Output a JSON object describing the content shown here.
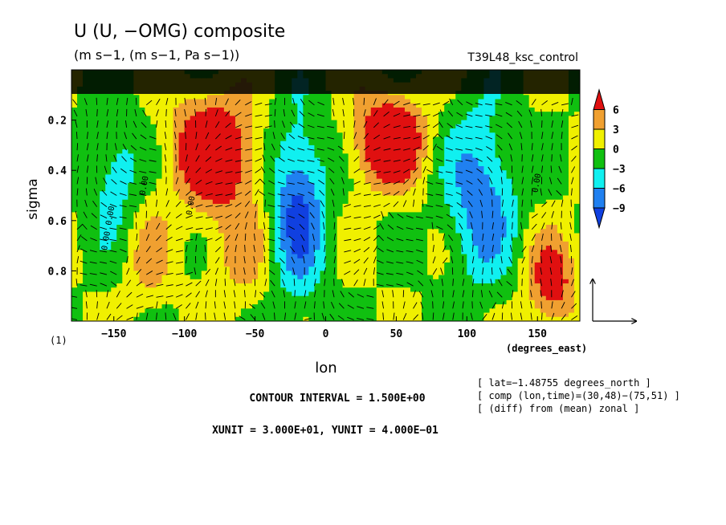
{
  "chart_data": {
    "type": "heatmap",
    "title": "U (U, −OMG) composite",
    "subtitle": "(m s−1, (m s−1, Pa s−1))",
    "run_label": "T39L48_ksc_control",
    "xlabel": "lon",
    "ylabel": "sigma",
    "x_unit_label": "(degrees_east)",
    "panel_label": "(1)",
    "xlim": [
      -180,
      180
    ],
    "ylim": [
      1.0,
      0.0
    ],
    "x_ticks": [
      {
        "value": -150,
        "label": "−150"
      },
      {
        "value": -100,
        "label": "−100"
      },
      {
        "value": -50,
        "label": "−50"
      },
      {
        "value": 0,
        "label": "0"
      },
      {
        "value": 50,
        "label": "50"
      },
      {
        "value": 100,
        "label": "100"
      },
      {
        "value": 150,
        "label": "150"
      }
    ],
    "y_ticks": [
      {
        "value": 0.2,
        "label": "0.2"
      },
      {
        "value": 0.4,
        "label": "0.4"
      },
      {
        "value": 0.6,
        "label": "0.6"
      },
      {
        "value": 0.8,
        "label": "0.8"
      }
    ],
    "colorbar": {
      "levels": [
        6,
        3,
        0,
        -3,
        -6,
        -9
      ],
      "labels": [
        "6",
        "3",
        "0",
        "−3",
        "−6",
        "−9"
      ],
      "colors": [
        "#e01010",
        "#f0a030",
        "#f0f000",
        "#10c010",
        "#10f0f0",
        "#2080f0",
        "#1040e0"
      ]
    },
    "contour_interval": "CONTOUR INTERVAL = 1.500E+00",
    "vector_units": "XUNIT = 3.000E+01, YUNIT = 4.000E−01",
    "annotations": [
      "[ lat=−1.48755 degrees_north ]",
      "[ comp (lon,time)=(30,48)−(75,51) ]",
      "[ (diff) from (mean) zonal ]"
    ],
    "contour_labels": [
      "0.00",
      "0.00",
      "0.00",
      "0.00",
      "0.00"
    ]
  }
}
